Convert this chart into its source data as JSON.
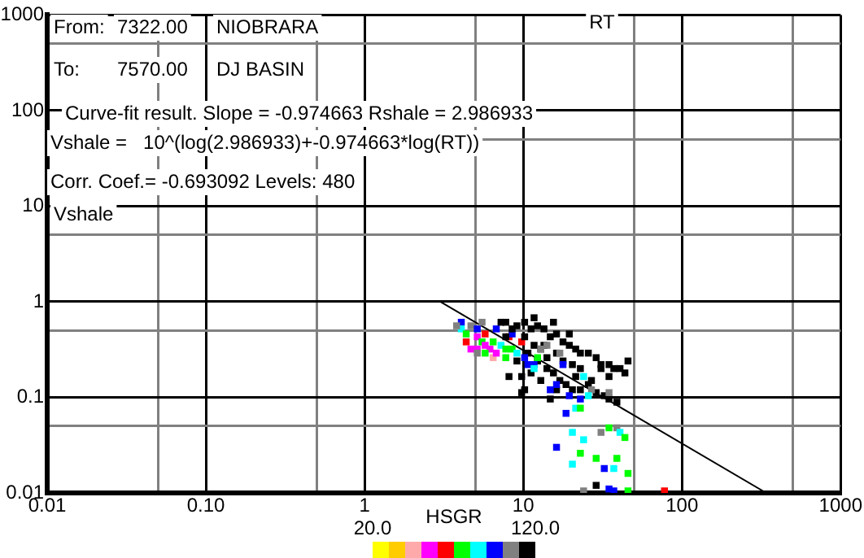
{
  "chart_data": {
    "type": "scatter",
    "xlabel": "RT",
    "ylabel": "Vshale",
    "clabel": "HSGR",
    "annotations": [
      "From:",
      "7322.00",
      "NIOBRARA",
      "To:",
      "7570.00",
      "DJ BASIN",
      "Curve-fit result. Slope = -0.974663 Rshale = 2.986933",
      "Vshale =   10^(log(2.986933)+-0.974663*log(RT))",
      "Corr. Coef.= -0.693092 Levels: 480"
    ],
    "xlim": [
      0.01,
      1000
    ],
    "ylim": [
      0.01,
      1000
    ],
    "log": "xy",
    "grid": true,
    "legend": false,
    "xticks": [
      0.01,
      {
        "value": 0.05,
        "label": null
      },
      {
        "value": 0.1,
        "label": "0.10"
      },
      {
        "value": 0.5,
        "label": null
      },
      1,
      {
        "value": 5,
        "label": null
      },
      10,
      {
        "value": 50,
        "label": null
      },
      100,
      {
        "value": 500,
        "label": null
      },
      1000
    ],
    "yticks": [
      0.01,
      {
        "value": 0.05,
        "label": null
      },
      0.1,
      {
        "value": 0.5,
        "label": null
      },
      1,
      {
        "value": 5,
        "label": null
      },
      10,
      {
        "value": 50,
        "label": null
      },
      100,
      {
        "value": 500,
        "label": null
      },
      1000
    ],
    "clim": [
      20,
      120
    ],
    "cticks": [
      {
        "value": 20,
        "label": "20.0"
      },
      {
        "value": 120,
        "label": "120.0"
      }
    ],
    "colors": [
      "#ffff00",
      "#ffcc00",
      "#ffaaaa",
      "#ff00ff",
      "#ff0000",
      "#00ff00",
      "#00ffff",
      "#0000ff",
      "#808080",
      "#000000"
    ],
    "series": [
      {
        "type": "scatter",
        "marker": "square",
        "colors": [
          "#0000ff",
          "#00ffff",
          "#00ff00",
          "#808080",
          "#ff00ff",
          "#0000ff",
          "#00ff00",
          "#ff00ff",
          "#ff0000",
          "#ff00ff",
          "#ffaaaa",
          "#00ff00",
          "#0000ff",
          "#00ffff",
          "#00ff00",
          "#ff0000",
          "#00ff00",
          "#0000ff",
          "#00ffff",
          "#ff0000",
          "#ff0000",
          "#ff00ff",
          "#ff00ff",
          "#00ff00",
          "#ff00ff",
          "#00ff00",
          "#808080",
          "#808080",
          "#000000",
          "#000000",
          "#000000",
          "#000000",
          "#000000",
          "#000000",
          "#000000",
          "#000000",
          "#000000",
          "#000000",
          "#000000",
          "#000000",
          "#000000",
          "#000000",
          "#000000",
          "#000000",
          "#000000",
          "#000000",
          "#000000",
          "#000000",
          "#000000",
          "#000000",
          "#000000",
          "#000000",
          "#000000",
          "#000000",
          "#000000",
          "#000000",
          "#000000",
          "#000000",
          "#000000",
          "#000000",
          "#000000",
          "#000000",
          "#000000",
          "#000000",
          "#000000",
          "#000000",
          "#000000",
          "#000000",
          "#000000",
          "#000000",
          "#000000",
          "#000000",
          "#000000",
          "#000000",
          "#000000",
          "#000000",
          "#000000",
          "#000000",
          "#000000",
          "#000000",
          "#000000",
          "#000000",
          "#000000",
          "#000000",
          "#000000",
          "#000000",
          "#000000",
          "#000000",
          "#000000",
          "#000000",
          "#808080",
          "#808080",
          "#808080",
          "#808080",
          "#808080",
          "#808080",
          "#808080",
          "#808080",
          "#808080",
          "#0000ff",
          "#0000ff",
          "#0000ff",
          "#0000ff",
          "#0000ff",
          "#0000ff",
          "#0000ff",
          "#0000ff",
          "#0000ff",
          "#0000ff",
          "#0000ff",
          "#0000ff",
          "#0000ff",
          "#00ffff",
          "#00ffff",
          "#00ffff",
          "#00ffff",
          "#00ffff",
          "#00ffff",
          "#00ffff",
          "#00ffff",
          "#00ffff",
          "#00ff00",
          "#00ff00",
          "#00ff00",
          "#00ff00",
          "#00ff00",
          "#00ff00",
          "#00ff00",
          "#00ff00",
          "#00ff00",
          "#ff0000"
        ],
        "x": [
          4.07,
          4.07,
          4.37,
          4.68,
          5.13,
          5.13,
          5.5,
          5.75,
          5.75,
          6.17,
          6.46,
          6.46,
          6.76,
          7.24,
          7.76,
          8.13,
          8.51,
          8.51,
          9.12,
          9.77,
          4.37,
          4.68,
          5.13,
          5.75,
          6.76,
          7.76,
          5.5,
          3.8,
          7.76,
          8.51,
          9.12,
          10.2,
          11.2,
          12.3,
          13.5,
          14.8,
          16.2,
          17.8,
          19.5,
          21.4,
          22.9,
          25.7,
          28.8,
          30.9,
          34.7,
          37.2,
          40.7,
          43.7,
          10.2,
          11.7,
          12.9,
          14.1,
          16.2,
          17.8,
          20.4,
          22.9,
          10.7,
          12.3,
          14.1,
          15.5,
          17,
          18.6,
          20.4,
          22.9,
          25.7,
          28.8,
          32.4,
          34.7,
          38.9,
          11.2,
          10.2,
          9.77,
          8.13,
          9.77,
          14.8,
          12.9,
          21.4,
          26.9,
          30.9,
          34.7,
          45.7,
          9.12,
          13.5,
          19.5,
          11.7,
          15.5,
          7.76,
          7.24,
          28.8,
          16.2,
          12.9,
          14.1,
          17,
          26.9,
          34.7,
          38.9,
          30.9,
          5.13,
          24,
          10.7,
          11.7,
          17.8,
          16.2,
          19.5,
          18.6,
          22.9,
          16.2,
          32.4,
          34.7,
          37.2,
          14.8,
          10.2,
          11.7,
          24,
          21.4,
          20.4,
          24,
          20.4,
          37.2,
          40.7,
          25.7,
          22.9,
          22.9,
          28.8,
          43.7,
          38.9,
          34.7,
          45.7,
          45.7,
          12.3,
          77.6
        ],
        "values": [
          0.61,
          0.52,
          0.46,
          0.56,
          0.43,
          0.52,
          0.38,
          0.35,
          0.46,
          0.32,
          0.26,
          0.38,
          0.52,
          0.35,
          0.32,
          0.43,
          0.32,
          0.46,
          0.29,
          0.38,
          0.38,
          0.32,
          0.32,
          0.29,
          0.29,
          0.26,
          0.61,
          0.56,
          0.61,
          0.52,
          0.56,
          0.61,
          0.52,
          0.56,
          0.52,
          0.43,
          0.46,
          0.38,
          0.35,
          0.32,
          0.29,
          0.29,
          0.26,
          0.22,
          0.22,
          0.2,
          0.2,
          0.18,
          0.43,
          0.35,
          0.32,
          0.26,
          0.29,
          0.24,
          0.22,
          0.2,
          0.29,
          0.24,
          0.2,
          0.18,
          0.15,
          0.136,
          0.12,
          0.12,
          0.136,
          0.112,
          0.104,
          0.096,
          0.089,
          0.18,
          0.12,
          0.165,
          0.165,
          0.112,
          0.096,
          0.15,
          0.165,
          0.15,
          0.2,
          0.165,
          0.24,
          0.24,
          0.35,
          0.46,
          0.68,
          0.61,
          0.43,
          0.61,
          0.012,
          0.12,
          0.32,
          0.35,
          0.29,
          0.12,
          0.112,
          0.048,
          0.043,
          0.29,
          0.0105,
          0.22,
          0.22,
          0.22,
          0.136,
          0.104,
          0.068,
          0.096,
          0.03,
          0.018,
          0.011,
          0.0105,
          0.12,
          0.26,
          0.2,
          0.165,
          0.077,
          0.043,
          0.036,
          0.02,
          0.018,
          0.043,
          0.104,
          0.077,
          0.026,
          0.023,
          0.038,
          0.023,
          0.048,
          0.016,
          0.0105,
          0.26,
          0.0105
        ],
        "name": null
      },
      {
        "type": "line",
        "x": [
          3,
          340
        ],
        "values": [
          1,
          0.01
        ],
        "color": "#000000"
      }
    ]
  }
}
